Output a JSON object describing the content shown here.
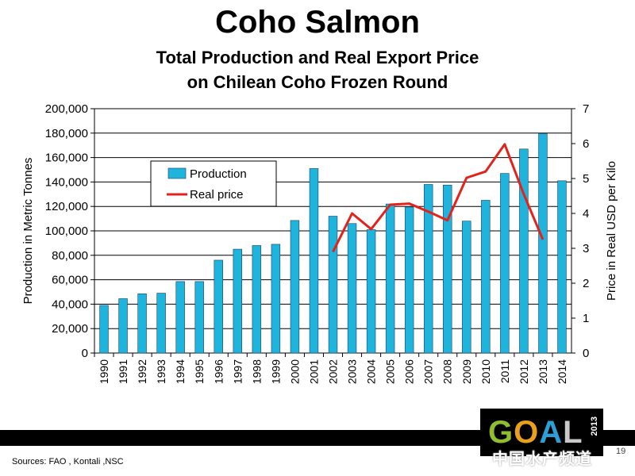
{
  "header": {
    "title": "Coho Salmon",
    "subtitle_line1": "Total Production and Real Export Price",
    "subtitle_line2": "on Chilean Coho Frozen Round"
  },
  "footer": {
    "sources": "Sources: FAO , Kontali ,NSC",
    "page_number": "19",
    "watermark": "中国水产频道"
  },
  "logo": {
    "letters": [
      "G",
      "O",
      "A",
      "L"
    ],
    "year": "2013"
  },
  "colors": {
    "bar": "#1fb4dc",
    "bar_edge": "#1b3f6b",
    "line": "#e3231b"
  },
  "chart_data": {
    "type": "bar",
    "title": "Total Production and Real Export Price on Chilean Coho Frozen Round",
    "ylabel": "Production in Metric Tonnes",
    "y2label": "Price in Real USD per Kilo",
    "ylim": [
      0,
      200000
    ],
    "y2lim": [
      0,
      7
    ],
    "yticks": [
      "0",
      "20,000",
      "40,000",
      "60,000",
      "80,000",
      "100,000",
      "120,000",
      "140,000",
      "160,000",
      "180,000",
      "200,000"
    ],
    "y2ticks": [
      "0",
      "1",
      "2",
      "3",
      "4",
      "5",
      "6",
      "7"
    ],
    "grid": true,
    "legend_position": "top-left",
    "categories": [
      "1990",
      "1991",
      "1992",
      "1993",
      "1994",
      "1995",
      "1996",
      "1997",
      "1998",
      "1999",
      "2000",
      "2001",
      "2002",
      "2003",
      "2004",
      "2005",
      "2006",
      "2007",
      "2008",
      "2009",
      "2010",
      "2011",
      "2012",
      "2013",
      "2014"
    ],
    "series": [
      {
        "name": "Production",
        "type": "bar",
        "values": [
          39000,
          44500,
          48500,
          49000,
          58500,
          58500,
          76000,
          85000,
          88000,
          89000,
          108500,
          151000,
          112000,
          106000,
          101000,
          122000,
          119500,
          138000,
          137500,
          108000,
          125000,
          147000,
          167000,
          179500,
          141000
        ]
      },
      {
        "name": "Real price",
        "type": "line",
        "axis": "right",
        "values": [
          null,
          null,
          null,
          null,
          null,
          null,
          null,
          null,
          null,
          null,
          null,
          null,
          2.9,
          4.0,
          3.55,
          4.25,
          4.28,
          4.05,
          3.8,
          5.02,
          5.2,
          5.98,
          4.55,
          3.25,
          null
        ]
      }
    ]
  }
}
